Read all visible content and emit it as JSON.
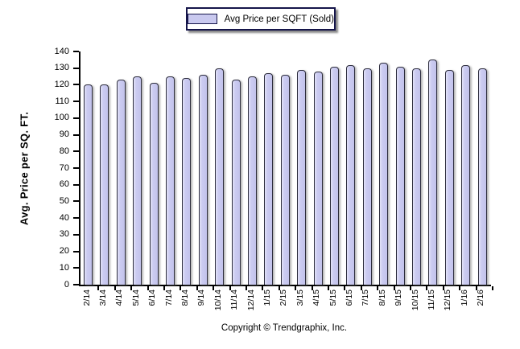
{
  "legend": {
    "label": "Avg Price per SQFT (Sold)",
    "swatch_color": "#c9c9ef"
  },
  "y_axis": {
    "title": "Avg. Price per SQ. FT.",
    "ticks": [
      0,
      10,
      20,
      30,
      40,
      50,
      60,
      70,
      80,
      90,
      100,
      110,
      120,
      130,
      140
    ]
  },
  "chart_data": {
    "type": "bar",
    "title": "",
    "series_name": "Avg Price per SQFT (Sold)",
    "categories": [
      "2/14",
      "3/14",
      "4/14",
      "5/14",
      "6/14",
      "7/14",
      "8/14",
      "9/14",
      "10/14",
      "11/14",
      "12/14",
      "1/15",
      "2/15",
      "3/15",
      "4/15",
      "5/15",
      "6/15",
      "7/15",
      "8/15",
      "9/15",
      "10/15",
      "11/15",
      "12/15",
      "1/16",
      "2/16"
    ],
    "values": [
      120,
      120,
      123,
      125,
      121,
      125,
      124,
      126,
      130,
      123,
      125,
      127,
      126,
      129,
      128,
      131,
      132,
      130,
      133,
      131,
      130,
      135,
      129,
      132,
      130
    ],
    "xlabel": "",
    "ylabel": "Avg. Price per SQ. FT.",
    "ylim": [
      0,
      140
    ],
    "ytick_step": 10,
    "grid": false,
    "legend_position": "top-center",
    "bar_color": "#c9c9ef",
    "bar_border_color": "#2c2c3c",
    "axis_color": "#000000"
  },
  "footer": {
    "copyright": "Copyright © Trendgraphix, Inc."
  }
}
